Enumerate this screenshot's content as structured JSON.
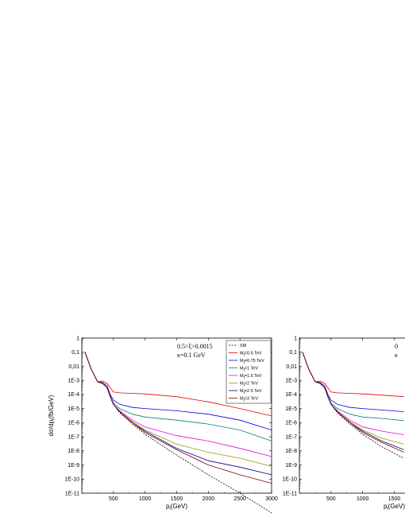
{
  "chart_data": [
    {
      "type": "line",
      "title": "",
      "xlabel": "p_l(GeV)",
      "ylabel": "dσ/dp_l(fb/GeV)",
      "xlim": [
        0,
        3000
      ],
      "ylim": [
        1e-11,
        1
      ],
      "yscale": "log",
      "xticks": [
        "500",
        "1000",
        "1500",
        "2000",
        "2500",
        "3000"
      ],
      "yticks": [
        "1",
        "0,1",
        "0,01",
        "1E-3",
        "1E-4",
        "1E-5",
        "1E-6",
        "1E-7",
        "1E-8",
        "1E-9",
        "1E-10",
        "1E-11"
      ],
      "annotations": [
        "0.5>ξ>0.0015",
        "κ=0.1 GeV"
      ],
      "legend_position": "top-right",
      "grid": false,
      "series": [
        {
          "name": "SM",
          "color": "#000000",
          "dashed": true,
          "x": [
            50,
            150,
            250,
            330,
            400,
            450,
            500,
            600,
            800,
            1000,
            1500,
            2000,
            2500,
            3000
          ],
          "y": [
            0.1,
            0.006,
            0.0008,
            0.0006,
            0.0003,
            7e-05,
            2e-05,
            5e-06,
            8e-07,
            1.5e-07,
            5e-09,
            2e-10,
            1e-11,
            4e-13
          ]
        },
        {
          "name": "M_l=0.5 TeV",
          "color": "#e60000",
          "x": [
            50,
            150,
            250,
            330,
            400,
            450,
            500,
            600,
            800,
            1000,
            1500,
            2000,
            2500,
            3000
          ],
          "y": [
            0.1,
            0.006,
            0.0008,
            0.0009,
            0.0006,
            0.0003,
            0.00015,
            0.00013,
            0.00012,
            0.00011,
            7e-05,
            3e-05,
            1e-05,
            3e-06
          ]
        },
        {
          "name": "M_l=0.75 TeV",
          "color": "#0000e6",
          "x": [
            50,
            150,
            250,
            330,
            400,
            450,
            500,
            600,
            800,
            1000,
            1500,
            2000,
            2500,
            3000
          ],
          "y": [
            0.1,
            0.006,
            0.0008,
            0.0007,
            0.0004,
            0.0001,
            4e-05,
            2e-05,
            1.2e-05,
            1e-05,
            7e-06,
            4e-06,
            1.5e-06,
            3e-07
          ]
        },
        {
          "name": "M_l=1 TeV",
          "color": "#008080",
          "x": [
            50,
            150,
            250,
            330,
            400,
            450,
            500,
            600,
            800,
            1000,
            1500,
            2000,
            2500,
            3000
          ],
          "y": [
            0.1,
            0.006,
            0.0008,
            0.0006,
            0.0003,
            8e-05,
            2.5e-05,
            1e-05,
            4e-06,
            2.5e-06,
            1.5e-06,
            8e-07,
            3e-07,
            5e-08
          ]
        },
        {
          "name": "M_l=1.5 TeV",
          "color": "#e600e6",
          "x": [
            50,
            150,
            250,
            330,
            400,
            450,
            500,
            600,
            800,
            1000,
            1500,
            2000,
            2500,
            3000
          ],
          "y": [
            0.1,
            0.006,
            0.0008,
            0.0006,
            0.0003,
            7e-05,
            2e-05,
            7e-06,
            1.5e-06,
            5e-07,
            1.2e-07,
            5e-08,
            1.5e-08,
            4e-09
          ]
        },
        {
          "name": "M_l=2 TeV",
          "color": "#999900",
          "x": [
            50,
            150,
            250,
            330,
            400,
            450,
            500,
            600,
            800,
            1000,
            1500,
            2000,
            2500,
            3000
          ],
          "y": [
            0.1,
            0.006,
            0.0008,
            0.0006,
            0.0003,
            7e-05,
            2e-05,
            6e-06,
            1.2e-06,
            3e-07,
            3e-08,
            8e-09,
            3e-09,
            8e-10
          ]
        },
        {
          "name": "M_l=2.5 TeV",
          "color": "#000080",
          "x": [
            50,
            150,
            250,
            330,
            400,
            450,
            500,
            600,
            800,
            1000,
            1500,
            2000,
            2500,
            3000
          ],
          "y": [
            0.1,
            0.006,
            0.0008,
            0.0006,
            0.0003,
            7e-05,
            2e-05,
            6e-06,
            1e-06,
            2.5e-07,
            1.5e-08,
            2e-09,
            7e-10,
            2e-10
          ]
        },
        {
          "name": "M_l=3 TeV",
          "color": "#800000",
          "x": [
            50,
            150,
            250,
            330,
            400,
            450,
            500,
            600,
            800,
            1000,
            1500,
            2000,
            2500,
            3000
          ],
          "y": [
            0.1,
            0.006,
            0.0008,
            0.0006,
            0.0003,
            7e-05,
            2e-05,
            6e-06,
            1e-06,
            2e-07,
            1.2e-08,
            1e-09,
            2e-10,
            5e-11
          ]
        }
      ]
    },
    {
      "type": "line",
      "title": "",
      "xlabel": "p_l(GeV)",
      "ylabel": "",
      "xlim": [
        0,
        3000
      ],
      "ylim": [
        1e-11,
        1
      ],
      "yscale": "log",
      "xticks": [
        "500",
        "1000",
        "1500"
      ],
      "yticks": [
        "1",
        "0,1",
        "0,01",
        "1E-3",
        "1E-4",
        "1E-5",
        "1E-6",
        "1E-7",
        "1E-8",
        "1E-9",
        "1E-10",
        "1E-11"
      ],
      "annotations": [
        "0",
        "κ"
      ],
      "grid": false,
      "series": [
        {
          "color": "#000000",
          "dashed": true,
          "x": [
            50,
            150,
            250,
            330,
            400,
            450,
            500,
            600,
            800,
            1000,
            1300,
            1650
          ],
          "y": [
            0.1,
            0.006,
            0.0008,
            0.0006,
            0.0003,
            7e-05,
            2e-05,
            5e-06,
            8e-07,
            1.5e-07,
            2e-08,
            3e-09
          ]
        },
        {
          "color": "#e60000",
          "x": [
            50,
            150,
            250,
            330,
            400,
            450,
            500,
            600,
            800,
            1000,
            1300,
            1650
          ],
          "y": [
            0.1,
            0.006,
            0.0008,
            0.0009,
            0.0006,
            0.0003,
            0.00015,
            0.00013,
            0.00012,
            0.00011,
            9e-05,
            7e-05
          ]
        },
        {
          "color": "#0000e6",
          "x": [
            50,
            150,
            250,
            330,
            400,
            450,
            500,
            600,
            800,
            1000,
            1300,
            1650
          ],
          "y": [
            0.1,
            0.006,
            0.0008,
            0.0007,
            0.0004,
            0.0001,
            4e-05,
            2e-05,
            1.2e-05,
            1e-05,
            8e-06,
            6e-06
          ]
        },
        {
          "color": "#008080",
          "x": [
            50,
            150,
            250,
            330,
            400,
            450,
            500,
            600,
            800,
            1000,
            1300,
            1650
          ],
          "y": [
            0.1,
            0.006,
            0.0008,
            0.0006,
            0.0003,
            8e-05,
            2.5e-05,
            1e-05,
            4e-06,
            2.5e-06,
            2e-06,
            1.4e-06
          ]
        },
        {
          "color": "#e600e6",
          "x": [
            50,
            150,
            250,
            330,
            400,
            450,
            500,
            600,
            800,
            1000,
            1300,
            1650
          ],
          "y": [
            0.1,
            0.006,
            0.0008,
            0.0006,
            0.0003,
            7e-05,
            2e-05,
            7e-06,
            1.5e-06,
            5e-07,
            2.5e-07,
            1.4e-07
          ]
        },
        {
          "color": "#999900",
          "x": [
            50,
            150,
            250,
            330,
            400,
            450,
            500,
            600,
            800,
            1000,
            1300,
            1650
          ],
          "y": [
            0.1,
            0.006,
            0.0008,
            0.0006,
            0.0003,
            7e-05,
            2e-05,
            6e-06,
            1.2e-06,
            3e-07,
            8e-08,
            3e-08
          ]
        },
        {
          "color": "#000080",
          "x": [
            50,
            150,
            250,
            330,
            400,
            450,
            500,
            600,
            800,
            1000,
            1300,
            1650
          ],
          "y": [
            0.1,
            0.006,
            0.0008,
            0.0006,
            0.0003,
            7e-05,
            2e-05,
            6e-06,
            1e-06,
            2.5e-07,
            5e-08,
            1.2e-08
          ]
        },
        {
          "color": "#800000",
          "x": [
            50,
            150,
            250,
            330,
            400,
            450,
            500,
            600,
            800,
            1000,
            1300,
            1650
          ],
          "y": [
            0.1,
            0.006,
            0.0008,
            0.0006,
            0.0003,
            7e-05,
            2e-05,
            6e-06,
            1e-06,
            2e-07,
            4e-08,
            8e-09
          ]
        }
      ]
    }
  ]
}
